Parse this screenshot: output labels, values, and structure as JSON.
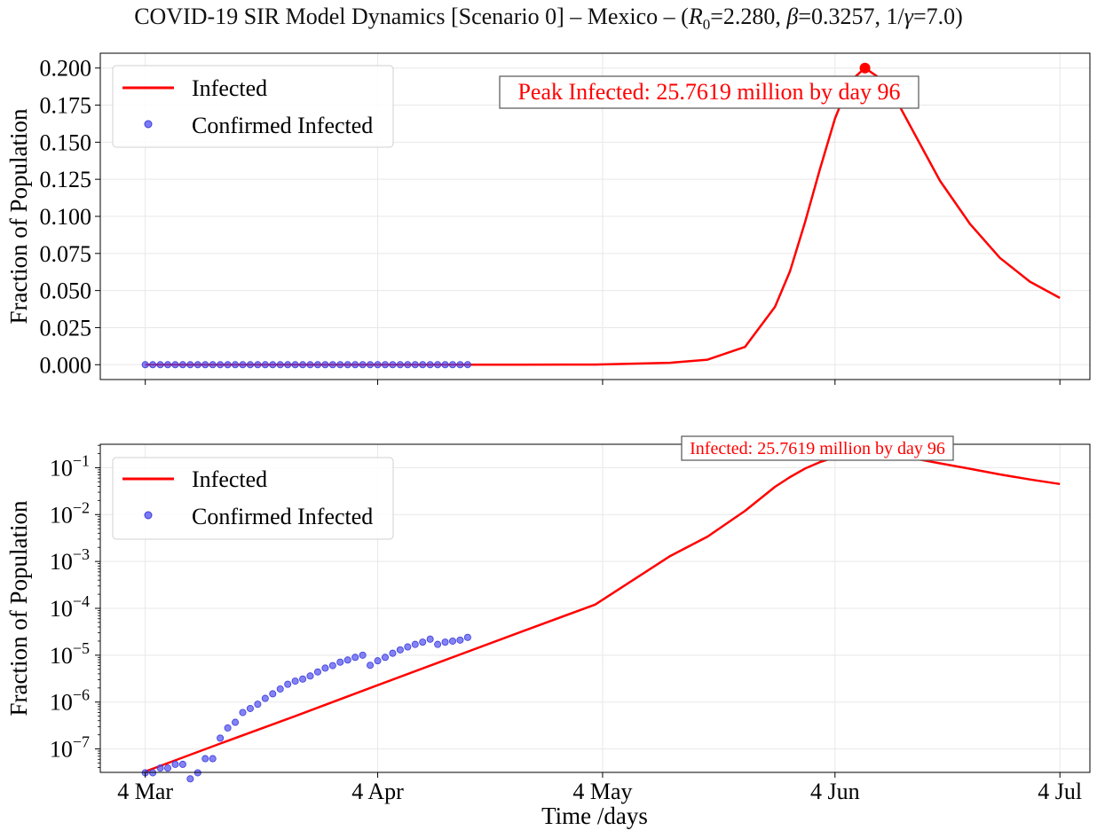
{
  "figure": {
    "title_prefix": "COVID-19 SIR Model Dynamics [Scenario 0] – Mexico – (",
    "r0_symbol": "R",
    "r0_sub": "0",
    "r0_value": "=2.280, ",
    "beta_symbol": "β",
    "beta_value": "=0.3257, 1/",
    "gamma_symbol": "γ",
    "gamma_value": "=7.0)"
  },
  "colors": {
    "model_line": "#ff0000",
    "confirmed_points": "#4f4ff2",
    "annotation_text": "#ff0000",
    "grid": "#e8e8e8",
    "axes": "#000000"
  },
  "chart_data": [
    {
      "type": "line",
      "scale": "linear",
      "ylabel": "Fraction of Population",
      "ylim": [
        -0.01,
        0.21
      ],
      "yticks": [
        0.0,
        0.025,
        0.05,
        0.075,
        0.1,
        0.125,
        0.15,
        0.175,
        0.2
      ],
      "ytick_labels": [
        "0.000",
        "0.025",
        "0.050",
        "0.075",
        "0.100",
        "0.125",
        "0.150",
        "0.175",
        "0.200"
      ],
      "annotation": "Peak Infected: 25.7619 million by day 96",
      "legend": {
        "placement": "upper-left",
        "entries": [
          "Infected",
          "Confirmed Infected"
        ]
      },
      "grid": true
    },
    {
      "type": "line",
      "scale": "log",
      "ylabel": "Fraction of Population",
      "xlabel": "Time /days",
      "ylim_exp": [
        -7.5,
        -0.5
      ],
      "yticks_exp": [
        -7,
        -6,
        -5,
        -4,
        -3,
        -2,
        -1
      ],
      "annotation": "Infected: 25.7619 million by day 96",
      "legend": {
        "placement": "upper-left",
        "entries": [
          "Infected",
          "Confirmed Infected"
        ]
      },
      "grid": true
    }
  ],
  "x_axis": {
    "ticks": [
      {
        "day": 0,
        "label": "4 Mar"
      },
      {
        "day": 31,
        "label": "4 Apr"
      },
      {
        "day": 61,
        "label": "4 May"
      },
      {
        "day": 92,
        "label": "4 Jun"
      },
      {
        "day": 122,
        "label": "4 Jul"
      }
    ],
    "xlim": [
      -6,
      126
    ]
  },
  "series": {
    "infected_model": {
      "name": "Infected",
      "peak_day": 96,
      "peak_value": 0.2,
      "points": [
        [
          0,
          3.3e-08
        ],
        [
          10,
          1.3e-07
        ],
        [
          20,
          5e-07
        ],
        [
          30,
          2e-06
        ],
        [
          40,
          7.9e-06
        ],
        [
          50,
          3.1e-05
        ],
        [
          60,
          0.00012
        ],
        [
          70,
          0.0013
        ],
        [
          75,
          0.0034
        ],
        [
          80,
          0.012
        ],
        [
          84,
          0.039
        ],
        [
          86,
          0.063
        ],
        [
          88,
          0.096
        ],
        [
          90,
          0.132
        ],
        [
          92,
          0.166
        ],
        [
          94,
          0.191
        ],
        [
          96,
          0.2
        ],
        [
          98,
          0.193
        ],
        [
          100,
          0.18
        ],
        [
          103,
          0.152
        ],
        [
          106,
          0.124
        ],
        [
          110,
          0.095
        ],
        [
          114,
          0.072
        ],
        [
          118,
          0.056
        ],
        [
          122,
          0.045
        ]
      ]
    },
    "confirmed": {
      "name": "Confirmed Infected",
      "days": [
        0,
        1,
        2,
        3,
        4,
        5,
        6,
        7,
        8,
        9,
        10,
        11,
        12,
        13,
        14,
        15,
        16,
        17,
        18,
        19,
        20,
        21,
        22,
        23,
        24,
        25,
        26,
        27,
        28,
        29,
        30,
        31,
        32,
        33,
        34,
        35,
        36,
        37,
        38,
        39,
        40,
        41,
        42,
        43
      ],
      "values": [
        3.1e-08,
        3.1e-08,
        3.9e-08,
        3.9e-08,
        4.7e-08,
        4.7e-08,
        2.3e-08,
        3.1e-08,
        6.2e-08,
        6.2e-08,
        1.7e-07,
        2.8e-07,
        3.7e-07,
        6e-07,
        7.3e-07,
        9e-07,
        1.2e-06,
        1.5e-06,
        1.9e-06,
        2.4e-06,
        2.8e-06,
        3.1e-06,
        3.6e-06,
        4.4e-06,
        5.3e-06,
        6e-06,
        7.1e-06,
        7.9e-06,
        9e-06,
        1e-05,
        6.1e-06,
        7.6e-06,
        9e-06,
        1.1e-05,
        1.3e-05,
        1.5e-05,
        1.7e-05,
        1.9e-05,
        2.2e-05,
        1.7e-05,
        1.9e-05,
        2e-05,
        2.1e-05,
        2.4e-05
      ]
    }
  }
}
